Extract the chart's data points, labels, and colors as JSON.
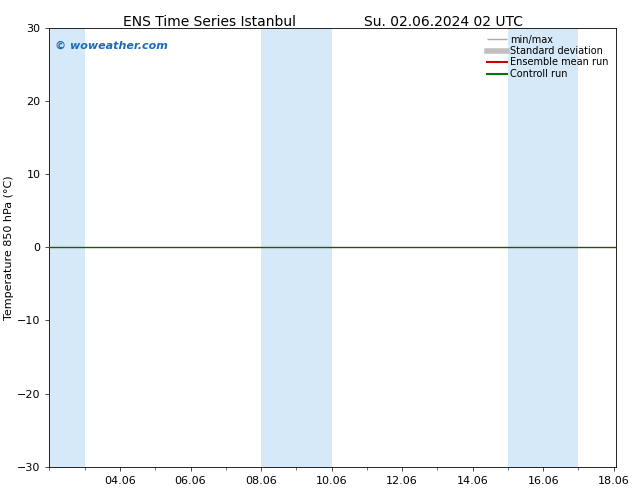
{
  "title_left": "ENS Time Series Istanbul",
  "title_right": "Su. 02.06.2024 02 UTC",
  "ylabel": "Temperature 850 hPa (°C)",
  "ylim": [
    -30,
    30
  ],
  "yticks": [
    -30,
    -20,
    -10,
    0,
    10,
    20,
    30
  ],
  "xtick_labels": [
    "04.06",
    "06.06",
    "08.06",
    "10.06",
    "12.06",
    "14.06",
    "16.06",
    "18.06"
  ],
  "xtick_positions": [
    4,
    6,
    8,
    10,
    12,
    14,
    16,
    18
  ],
  "shaded_bands": [
    {
      "xmin": 2.0,
      "xmax": 3.0
    },
    {
      "xmin": 8.0,
      "xmax": 9.0
    },
    {
      "xmin": 9.0,
      "xmax": 10.0
    },
    {
      "xmin": 15.0,
      "xmax": 16.0
    },
    {
      "xmin": 16.0,
      "xmax": 17.0
    }
  ],
  "xlim": [
    2.08,
    18.06
  ],
  "shade_color": "#d6e9f8",
  "background_color": "#ffffff",
  "zero_line_color": "#2d5016",
  "watermark": "© woweather.com",
  "watermark_color": "#1a6abf",
  "legend_items": [
    {
      "label": "min/max",
      "color": "#aaaaaa",
      "style": "line_err"
    },
    {
      "label": "Standard deviation",
      "color": "#c0c0c0",
      "style": "line_wide"
    },
    {
      "label": "Ensemble mean run",
      "color": "#cc0000",
      "style": "line"
    },
    {
      "label": "Controll run",
      "color": "#007700",
      "style": "line"
    }
  ],
  "title_fontsize": 10,
  "axis_label_fontsize": 8,
  "tick_fontsize": 8,
  "legend_fontsize": 7
}
